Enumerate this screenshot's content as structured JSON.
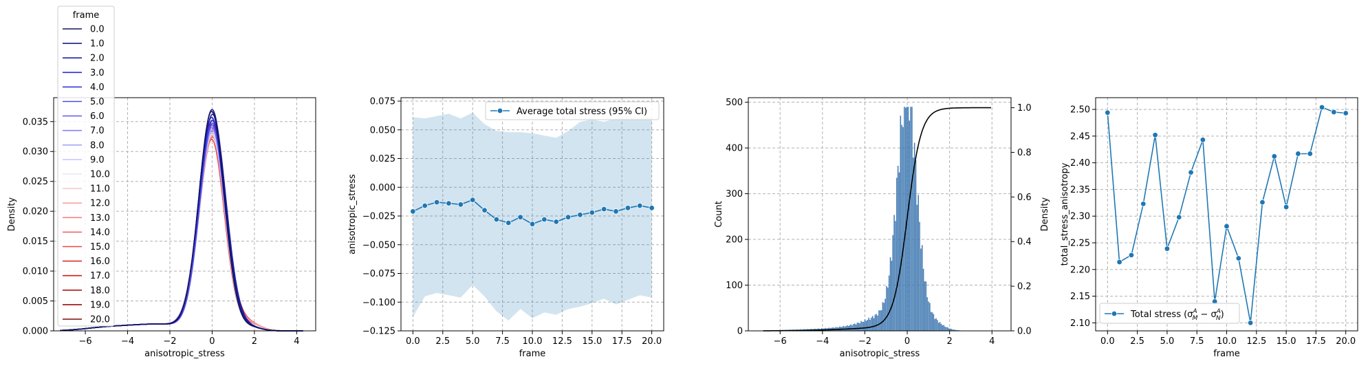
{
  "chart_data": [
    {
      "type": "line",
      "subtype": "kde",
      "xlabel": "anisotropic_stress",
      "ylabel": "Density",
      "xlim": [
        -7.5,
        4.9
      ],
      "ylim": [
        0,
        0.039
      ],
      "xticks": [
        -6,
        -4,
        -2,
        0,
        2,
        4
      ],
      "yticks": [
        0.0,
        0.005,
        0.01,
        0.015,
        0.02,
        0.025,
        0.03,
        0.035
      ],
      "ytick_labels": [
        "0.000",
        "0.005",
        "0.010",
        "0.015",
        "0.020",
        "0.025",
        "0.030",
        "0.035"
      ],
      "grid": true,
      "legend": {
        "title": "frame",
        "placement": "top-left, above axes",
        "entries": [
          {
            "label": "0.0",
            "color": "#14145a"
          },
          {
            "label": "1.0",
            "color": "#1c1c8c"
          },
          {
            "label": "2.0",
            "color": "#2121b0"
          },
          {
            "label": "3.0",
            "color": "#2a2ad0"
          },
          {
            "label": "4.0",
            "color": "#3535e6"
          },
          {
            "label": "5.0",
            "color": "#4a4af0"
          },
          {
            "label": "6.0",
            "color": "#6464f5"
          },
          {
            "label": "7.0",
            "color": "#8282f7"
          },
          {
            "label": "8.0",
            "color": "#a4a4f9"
          },
          {
            "label": "9.0",
            "color": "#c8c8fb"
          },
          {
            "label": "10.0",
            "color": "#ece6ec"
          },
          {
            "label": "11.0",
            "color": "#f9c8c8"
          },
          {
            "label": "12.0",
            "color": "#f6a4a4"
          },
          {
            "label": "13.0",
            "color": "#f58282"
          },
          {
            "label": "14.0",
            "color": "#f06464"
          },
          {
            "label": "15.0",
            "color": "#ea4646"
          },
          {
            "label": "16.0",
            "color": "#e02a2a"
          },
          {
            "label": "17.0",
            "color": "#cc1c1c"
          },
          {
            "label": "18.0",
            "color": "#b01414"
          },
          {
            "label": "19.0",
            "color": "#960e0e"
          },
          {
            "label": "20.0",
            "color": "#7a0a0a"
          }
        ]
      },
      "kde_peak_density_by_frame": [
        0.0365,
        0.0368,
        0.036,
        0.0355,
        0.035,
        0.0345,
        0.0342,
        0.0338,
        0.0334,
        0.033,
        0.0326,
        0.033,
        0.0334,
        0.0328,
        0.0322,
        0.0318,
        0.0325,
        0.0332,
        0.0338,
        0.0342,
        0.035
      ],
      "kde_std_estimate": 0.62
    },
    {
      "type": "line",
      "xlabel": "frame",
      "ylabel": "anisotropic_stress",
      "xlim": [
        -1,
        21
      ],
      "ylim": [
        -0.125,
        0.078
      ],
      "xticks": [
        0,
        2.5,
        5,
        7.5,
        10,
        12.5,
        15,
        17.5,
        20
      ],
      "xtick_labels": [
        "0.0",
        "2.5",
        "5.0",
        "7.5",
        "10.0",
        "12.5",
        "15.0",
        "17.5",
        "20.0"
      ],
      "yticks": [
        -0.125,
        -0.1,
        -0.075,
        -0.05,
        -0.025,
        0.0,
        0.025,
        0.05,
        0.075
      ],
      "ytick_labels": [
        "−0.125",
        "−0.100",
        "−0.075",
        "−0.050",
        "−0.025",
        "0.000",
        "0.025",
        "0.050",
        "0.075"
      ],
      "grid": true,
      "legend": {
        "placement": "top-right",
        "entries": [
          {
            "label": "Average total stress (95% CI)"
          }
        ]
      },
      "series": [
        {
          "name": "Average total stress (95% CI)",
          "color": "#1f77b4",
          "x": [
            0,
            1,
            2,
            3,
            4,
            5,
            6,
            7,
            8,
            9,
            10,
            11,
            12,
            13,
            14,
            15,
            16,
            17,
            18,
            19,
            20
          ],
          "y": [
            -0.021,
            -0.016,
            -0.013,
            -0.014,
            -0.015,
            -0.011,
            -0.02,
            -0.028,
            -0.031,
            -0.026,
            -0.032,
            -0.028,
            -0.03,
            -0.026,
            -0.024,
            -0.022,
            -0.019,
            -0.021,
            -0.018,
            -0.016,
            -0.018
          ],
          "ci_upper": [
            0.061,
            0.06,
            0.062,
            0.064,
            0.06,
            0.065,
            0.055,
            0.049,
            0.048,
            0.048,
            0.047,
            0.045,
            0.043,
            0.049,
            0.057,
            0.059,
            0.057,
            0.06,
            0.062,
            0.06,
            0.061
          ],
          "ci_lower": [
            -0.113,
            -0.095,
            -0.092,
            -0.094,
            -0.096,
            -0.085,
            -0.095,
            -0.108,
            -0.116,
            -0.106,
            -0.114,
            -0.109,
            -0.111,
            -0.106,
            -0.104,
            -0.101,
            -0.097,
            -0.102,
            -0.098,
            -0.094,
            -0.096
          ]
        }
      ]
    },
    {
      "type": "bar",
      "subtype": "histogram_with_ecdf",
      "xlabel": "anisotropic_stress",
      "ylabel": "Count",
      "ylabel_right": "Density",
      "xlim": [
        -7.5,
        4.9
      ],
      "ylim": [
        0,
        510
      ],
      "ylim_right": [
        0,
        1.045
      ],
      "xticks": [
        -6,
        -4,
        -2,
        0,
        2,
        4
      ],
      "yticks": [
        0,
        100,
        200,
        300,
        400,
        500
      ],
      "yticks_right": [
        0.0,
        0.2,
        0.4,
        0.6,
        0.8,
        1.0
      ],
      "ytick_labels_right": [
        "0.0",
        "0.2",
        "0.4",
        "0.6",
        "0.8",
        "1.0"
      ],
      "grid": true,
      "bar_color": "#3b75af",
      "line_color": "#000000",
      "hist_bin_width": 0.06,
      "hist_peak_count": 490,
      "hist_center": 0.0,
      "hist_std_estimate": 0.45,
      "ecdf_x_range": [
        -6.8,
        4.0
      ]
    },
    {
      "type": "line",
      "xlabel": "frame",
      "ylabel": "total_stress_anisotropy",
      "xlim": [
        -1,
        21
      ],
      "ylim": [
        2.085,
        2.522
      ],
      "xticks": [
        0,
        2.5,
        5,
        7.5,
        10,
        12.5,
        15,
        17.5,
        20
      ],
      "xtick_labels": [
        "0.0",
        "2.5",
        "5.0",
        "7.5",
        "10.0",
        "12.5",
        "15.0",
        "17.5",
        "20.0"
      ],
      "yticks": [
        2.1,
        2.15,
        2.2,
        2.25,
        2.3,
        2.35,
        2.4,
        2.45,
        2.5
      ],
      "ytick_labels": [
        "2.10",
        "2.15",
        "2.20",
        "2.25",
        "2.30",
        "2.35",
        "2.40",
        "2.45",
        "2.50"
      ],
      "grid": true,
      "legend": {
        "placement": "bottom-left",
        "entries": [
          {
            "label": "Total stress (σ_M^A − σ_N^A)"
          }
        ]
      },
      "series": [
        {
          "name": "Total stress (σ_M^A − σ_N^A)",
          "color": "#1f77b4",
          "x": [
            0,
            1,
            2,
            3,
            4,
            5,
            6,
            7,
            8,
            9,
            10,
            11,
            12,
            13,
            14,
            15,
            16,
            17,
            18,
            19,
            20
          ],
          "y": [
            2.494,
            2.214,
            2.227,
            2.323,
            2.452,
            2.239,
            2.298,
            2.382,
            2.443,
            2.14,
            2.281,
            2.221,
            2.1,
            2.326,
            2.412,
            2.317,
            2.417,
            2.417,
            2.504,
            2.495,
            2.493
          ]
        }
      ]
    }
  ]
}
